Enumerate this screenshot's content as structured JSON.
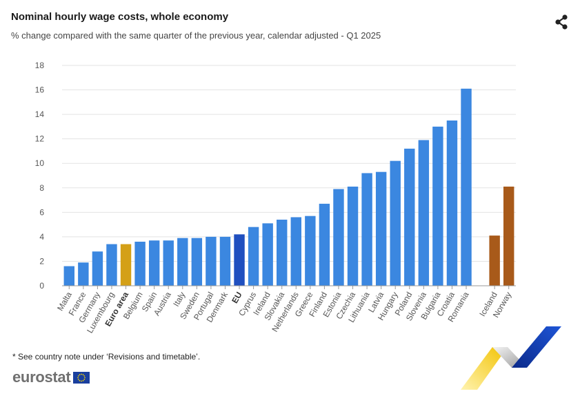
{
  "header": {
    "title": "Nominal hourly wage costs, whole economy",
    "subtitle": "% change compared with the same quarter of the previous year, calendar adjusted - Q1 2025"
  },
  "footer": {
    "note": "* See country note under ‘Revisions and timetable’.",
    "logo_text": "eurostat"
  },
  "colors": {
    "default_bar": "#3b87e0",
    "euro_area": "#d4a017",
    "eu": "#1f4fbf",
    "efta": "#a85a1a",
    "grid": "#e3e3e3",
    "tick_text": "#555555"
  },
  "icons": {
    "share": "share-icon",
    "flag": "eu-flag-icon"
  },
  "chart_data": {
    "type": "bar",
    "title": "Nominal hourly wage costs, whole economy",
    "ylabel": "",
    "xlabel": "",
    "ylim": [
      0,
      18
    ],
    "yticks": [
      0,
      2,
      4,
      6,
      8,
      10,
      12,
      14,
      16,
      18
    ],
    "grid": true,
    "categories": [
      "Malta",
      "France",
      "Germany",
      "Luxembourg",
      "Euro area",
      "Belgium",
      "Spain",
      "Austria",
      "Italy",
      "Sweden",
      "Portugal",
      "Denmark",
      "EU",
      "Cyprus",
      "Ireland",
      "Slovakia",
      "Netherlands",
      "Greece",
      "Finland",
      "Estonia",
      "Czechia",
      "Lithuania",
      "Latvia",
      "Hungary",
      "Poland",
      "Slovenia",
      "Bulgaria",
      "Croatia",
      "Romania",
      "",
      "Iceland",
      "Norway"
    ],
    "values": [
      1.6,
      1.9,
      2.8,
      3.4,
      3.4,
      3.6,
      3.7,
      3.7,
      3.9,
      3.9,
      4.0,
      4.0,
      4.2,
      4.8,
      5.1,
      5.4,
      5.6,
      5.7,
      6.7,
      7.9,
      8.1,
      9.2,
      9.3,
      10.2,
      11.2,
      11.9,
      13.0,
      13.5,
      16.1,
      null,
      4.1,
      8.1
    ],
    "groups": [
      "default",
      "default",
      "default",
      "default",
      "euro_area",
      "default",
      "default",
      "default",
      "default",
      "default",
      "default",
      "default",
      "eu",
      "default",
      "default",
      "default",
      "default",
      "default",
      "default",
      "default",
      "default",
      "default",
      "default",
      "default",
      "default",
      "default",
      "default",
      "default",
      "default",
      "gap",
      "efta",
      "efta"
    ],
    "bold_labels": [
      "Euro area",
      "EU"
    ]
  }
}
